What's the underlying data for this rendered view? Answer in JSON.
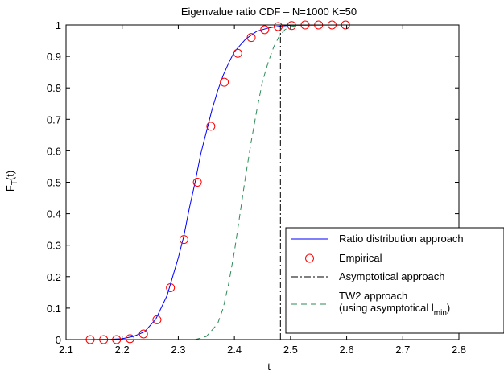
{
  "chart_data": {
    "type": "line",
    "title": "Eigenvalue ratio CDF – N=1000 K=50",
    "xlabel": "t",
    "ylabel": "F_T(t)",
    "ylabel_main": "F",
    "ylabel_sub": "T",
    "ylabel_rest": "(t)",
    "xlim": [
      2.1,
      2.8
    ],
    "ylim": [
      0,
      1
    ],
    "xticks": [
      2.1,
      2.2,
      2.3,
      2.4,
      2.5,
      2.6,
      2.7,
      2.8
    ],
    "yticks": [
      0,
      0.1,
      0.2,
      0.3,
      0.4,
      0.5,
      0.6,
      0.7,
      0.8,
      0.9,
      1
    ],
    "xtick_labels": [
      "2.1",
      "2.2",
      "2.3",
      "2.4",
      "2.5",
      "2.6",
      "2.7",
      "2.8"
    ],
    "ytick_labels": [
      "0",
      "0.1",
      "0.2",
      "0.3",
      "0.4",
      "0.5",
      "0.6",
      "0.7",
      "0.8",
      "0.9",
      "1"
    ],
    "grid": false,
    "legend_position": "bottom-right",
    "series": [
      {
        "name": "Ratio distribution approach",
        "style": "solid",
        "color": "#0000ff",
        "points": [
          [
            2.14,
            0
          ],
          [
            2.18,
            0.001
          ],
          [
            2.2,
            0.003
          ],
          [
            2.22,
            0.01
          ],
          [
            2.24,
            0.025
          ],
          [
            2.26,
            0.065
          ],
          [
            2.28,
            0.14
          ],
          [
            2.29,
            0.2
          ],
          [
            2.3,
            0.26
          ],
          [
            2.31,
            0.33
          ],
          [
            2.32,
            0.42
          ],
          [
            2.33,
            0.5
          ],
          [
            2.34,
            0.59
          ],
          [
            2.35,
            0.66
          ],
          [
            2.36,
            0.73
          ],
          [
            2.37,
            0.79
          ],
          [
            2.38,
            0.84
          ],
          [
            2.39,
            0.88
          ],
          [
            2.4,
            0.915
          ],
          [
            2.42,
            0.955
          ],
          [
            2.44,
            0.98
          ],
          [
            2.46,
            0.99
          ],
          [
            2.48,
            0.996
          ],
          [
            2.5,
            0.999
          ],
          [
            2.6,
            1
          ]
        ]
      },
      {
        "name": "Empirical",
        "style": "markers",
        "color": "#ff0000",
        "points": [
          [
            2.143,
            0
          ],
          [
            2.167,
            0
          ],
          [
            2.19,
            0
          ],
          [
            2.214,
            0.003
          ],
          [
            2.238,
            0.018
          ],
          [
            2.262,
            0.063
          ],
          [
            2.286,
            0.165
          ],
          [
            2.31,
            0.318
          ],
          [
            2.334,
            0.5
          ],
          [
            2.358,
            0.678
          ],
          [
            2.382,
            0.818
          ],
          [
            2.406,
            0.91
          ],
          [
            2.43,
            0.96
          ],
          [
            2.454,
            0.985
          ],
          [
            2.478,
            0.995
          ],
          [
            2.502,
            0.998
          ],
          [
            2.526,
            1
          ],
          [
            2.55,
            1
          ],
          [
            2.574,
            1
          ],
          [
            2.598,
            1
          ]
        ]
      },
      {
        "name": "Asymptotical approach",
        "style": "dashdot",
        "color": "#000000",
        "points": [
          [
            2.482,
            0
          ],
          [
            2.482,
            1
          ]
        ]
      },
      {
        "name": "TW2 approach (using asymptotical l_min)",
        "legend_line1": "TW2 approach",
        "legend_line2_pre": "(using asymptotical l",
        "legend_line2_sub": "min",
        "legend_line2_post": ")",
        "style": "dashed",
        "color": "#2e8b57",
        "points": [
          [
            2.33,
            0
          ],
          [
            2.35,
            0.01
          ],
          [
            2.37,
            0.05
          ],
          [
            2.38,
            0.1
          ],
          [
            2.39,
            0.18
          ],
          [
            2.4,
            0.28
          ],
          [
            2.41,
            0.4
          ],
          [
            2.42,
            0.52
          ],
          [
            2.43,
            0.63
          ],
          [
            2.44,
            0.73
          ],
          [
            2.45,
            0.82
          ],
          [
            2.46,
            0.88
          ],
          [
            2.47,
            0.93
          ],
          [
            2.48,
            0.965
          ],
          [
            2.49,
            0.985
          ],
          [
            2.5,
            0.995
          ],
          [
            2.52,
            1
          ]
        ]
      }
    ]
  }
}
